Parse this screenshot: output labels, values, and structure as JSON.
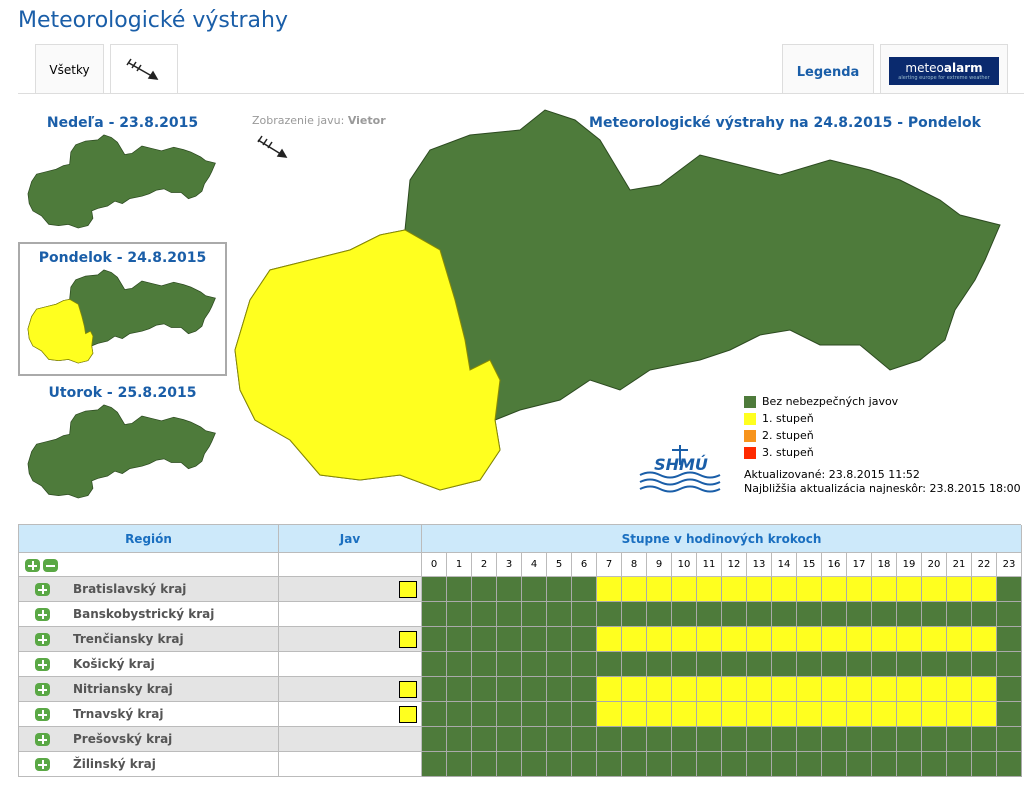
{
  "header": {
    "title": "Meteorologické výstrahy"
  },
  "tabs": [
    "Všetky",
    "Legenda"
  ],
  "meteoalarm": {
    "brand_light": "meteo",
    "brand_bold": "alarm",
    "tagline": "alerting europe for extreme weather"
  },
  "days": [
    "Nedeľa - 23.8.2015",
    "Pondelok - 24.8.2015",
    "Utorok - 25.8.2015"
  ],
  "phenomenon": {
    "label": "Zobrazenie javu:",
    "value": "Vietor"
  },
  "map": {
    "title": "Meteorologické výstrahy na 24.8.2015 - Pondelok",
    "logo": "SHMÚ"
  },
  "legend": [
    {
      "label": "Bez nebezpečných javov",
      "color": "#4e7b3b"
    },
    {
      "label": "1. stupeň",
      "color": "#ffff1f"
    },
    {
      "label": "2. stupeň",
      "color": "#f7941d"
    },
    {
      "label": "3. stupeň",
      "color": "#ff2a00"
    }
  ],
  "updated": "Aktualizované: 23.8.2015 11:52",
  "next_update": "Najbližšia aktualizácia najneskôr: 23.8.2015 18:00",
  "table": {
    "headers": [
      "Región",
      "Jav",
      "Stupne v hodinových krokoch"
    ],
    "hours": [
      0,
      1,
      2,
      3,
      4,
      5,
      6,
      7,
      8,
      9,
      10,
      11,
      12,
      13,
      14,
      15,
      16,
      17,
      18,
      19,
      20,
      21,
      22,
      23
    ],
    "rows": [
      {
        "region": "Bratislavský kraj",
        "wind_warning": true,
        "levels": [
          0,
          0,
          0,
          0,
          0,
          0,
          0,
          1,
          1,
          1,
          1,
          1,
          1,
          1,
          1,
          1,
          1,
          1,
          1,
          1,
          1,
          1,
          1,
          0
        ]
      },
      {
        "region": "Banskobystrický kraj",
        "wind_warning": false,
        "levels": [
          0,
          0,
          0,
          0,
          0,
          0,
          0,
          0,
          0,
          0,
          0,
          0,
          0,
          0,
          0,
          0,
          0,
          0,
          0,
          0,
          0,
          0,
          0,
          0
        ]
      },
      {
        "region": "Trenčiansky kraj",
        "wind_warning": true,
        "levels": [
          0,
          0,
          0,
          0,
          0,
          0,
          0,
          1,
          1,
          1,
          1,
          1,
          1,
          1,
          1,
          1,
          1,
          1,
          1,
          1,
          1,
          1,
          1,
          0
        ]
      },
      {
        "region": "Košický kraj",
        "wind_warning": false,
        "levels": [
          0,
          0,
          0,
          0,
          0,
          0,
          0,
          0,
          0,
          0,
          0,
          0,
          0,
          0,
          0,
          0,
          0,
          0,
          0,
          0,
          0,
          0,
          0,
          0
        ]
      },
      {
        "region": "Nitriansky kraj",
        "wind_warning": true,
        "levels": [
          0,
          0,
          0,
          0,
          0,
          0,
          0,
          1,
          1,
          1,
          1,
          1,
          1,
          1,
          1,
          1,
          1,
          1,
          1,
          1,
          1,
          1,
          1,
          0
        ]
      },
      {
        "region": "Trnavský kraj",
        "wind_warning": true,
        "levels": [
          0,
          0,
          0,
          0,
          0,
          0,
          0,
          1,
          1,
          1,
          1,
          1,
          1,
          1,
          1,
          1,
          1,
          1,
          1,
          1,
          1,
          1,
          1,
          0
        ]
      },
      {
        "region": "Prešovský kraj",
        "wind_warning": false,
        "levels": [
          0,
          0,
          0,
          0,
          0,
          0,
          0,
          0,
          0,
          0,
          0,
          0,
          0,
          0,
          0,
          0,
          0,
          0,
          0,
          0,
          0,
          0,
          0,
          0
        ]
      },
      {
        "region": "Žilinský kraj",
        "wind_warning": false,
        "levels": [
          0,
          0,
          0,
          0,
          0,
          0,
          0,
          0,
          0,
          0,
          0,
          0,
          0,
          0,
          0,
          0,
          0,
          0,
          0,
          0,
          0,
          0,
          0,
          0
        ]
      }
    ]
  }
}
